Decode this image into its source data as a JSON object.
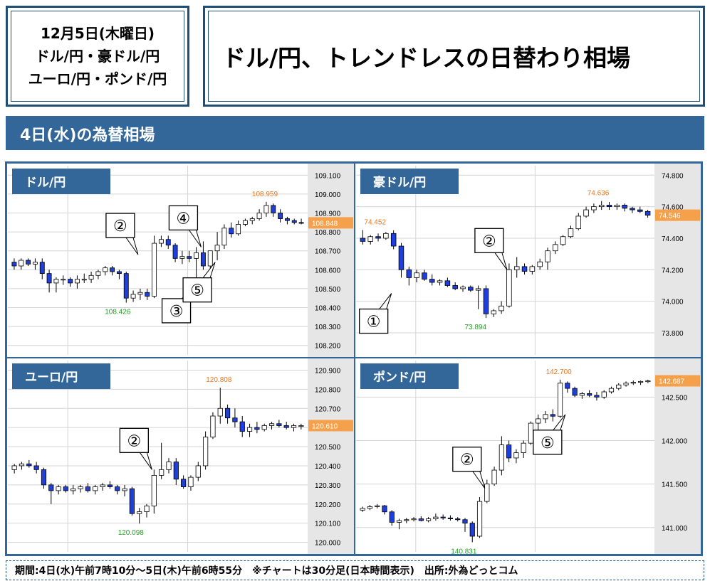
{
  "header": {
    "date_line": "12月5日(木曜日)",
    "pairs_line_1": "ドル/円・豪ドル/円",
    "pairs_line_2": "ユーロ/円・ポンド/円",
    "headline": "ドル/円、トレンドレスの日替わり相場"
  },
  "section_title": "4日(水)の為替相場",
  "footer_text": "期間:4日(水)午前7時10分～5日(木)午前6時55分　※チャートは30分足(日本時間表示)　出所:外為どっとコム",
  "colors": {
    "navy": "#1f4e79",
    "bar_blue": "#336699",
    "up_candle": "#ffffff",
    "down_candle": "#1e3ede",
    "high_label": "#e8781e",
    "low_label": "#22a022",
    "price_tag": "#f5a04a"
  },
  "chart_data": [
    {
      "type": "candlestick",
      "title": "ドル/円",
      "ylim": [
        108.15,
        109.15
      ],
      "yticks": [
        108.2,
        108.3,
        108.4,
        108.5,
        108.6,
        108.7,
        108.8,
        108.9,
        109.0,
        109.1
      ],
      "ytick_labels": [
        "108.200",
        "108.300",
        "108.400",
        "108.500",
        "108.600",
        "108.700",
        "108.800",
        "108.900",
        "109.000",
        "109.100"
      ],
      "last_price": 108.848,
      "last_price_label": "108.848",
      "high": {
        "value": 108.959,
        "label": "108.959",
        "index": 36
      },
      "low": {
        "value": 108.426,
        "label": "108.426",
        "index": 16
      },
      "annotations": [
        {
          "label": "②",
          "index": 18,
          "value": 108.68
        },
        {
          "label": "③",
          "index": 26,
          "value": 108.53
        },
        {
          "label": "④",
          "index": 27,
          "value": 108.72
        },
        {
          "label": "⑤",
          "index": 29,
          "value": 108.64
        }
      ],
      "candles": [
        [
          108.64,
          108.66,
          108.6,
          108.62
        ],
        [
          108.62,
          108.66,
          108.6,
          108.65
        ],
        [
          108.65,
          108.66,
          108.62,
          108.63
        ],
        [
          108.63,
          108.66,
          108.6,
          108.64
        ],
        [
          108.64,
          108.66,
          108.55,
          108.58
        ],
        [
          108.58,
          108.6,
          108.48,
          108.53
        ],
        [
          108.53,
          108.56,
          108.48,
          108.55
        ],
        [
          108.55,
          108.57,
          108.52,
          108.55
        ],
        [
          108.55,
          108.56,
          108.51,
          108.53
        ],
        [
          108.53,
          108.57,
          108.5,
          108.55
        ],
        [
          108.55,
          108.58,
          108.53,
          108.55
        ],
        [
          108.55,
          108.59,
          108.53,
          108.57
        ],
        [
          108.57,
          108.6,
          108.55,
          108.59
        ],
        [
          108.59,
          108.62,
          108.57,
          108.61
        ],
        [
          108.61,
          108.62,
          108.57,
          108.59
        ],
        [
          108.59,
          108.6,
          108.55,
          108.58
        ],
        [
          108.58,
          108.59,
          108.426,
          108.45
        ],
        [
          108.45,
          108.49,
          108.43,
          108.47
        ],
        [
          108.47,
          108.5,
          108.44,
          108.48
        ],
        [
          108.48,
          108.5,
          108.44,
          108.46
        ],
        [
          108.46,
          108.78,
          108.45,
          108.74
        ],
        [
          108.74,
          108.78,
          108.72,
          108.76
        ],
        [
          108.76,
          108.78,
          108.71,
          108.73
        ],
        [
          108.73,
          108.74,
          108.64,
          108.66
        ],
        [
          108.66,
          108.7,
          108.63,
          108.67
        ],
        [
          108.67,
          108.7,
          108.64,
          108.66
        ],
        [
          108.66,
          108.72,
          108.53,
          108.69
        ],
        [
          108.69,
          108.75,
          108.6,
          108.62
        ],
        [
          108.62,
          108.7,
          108.6,
          108.7
        ],
        [
          108.7,
          108.8,
          108.65,
          108.73
        ],
        [
          108.73,
          108.84,
          108.71,
          108.82
        ],
        [
          108.82,
          108.85,
          108.77,
          108.79
        ],
        [
          108.79,
          108.86,
          108.78,
          108.84
        ],
        [
          108.84,
          108.87,
          108.83,
          108.86
        ],
        [
          108.86,
          108.88,
          108.84,
          108.87
        ],
        [
          108.87,
          108.92,
          108.86,
          108.9
        ],
        [
          108.9,
          108.959,
          108.88,
          108.94
        ],
        [
          108.94,
          108.95,
          108.88,
          108.9
        ],
        [
          108.9,
          108.92,
          108.85,
          108.87
        ],
        [
          108.87,
          108.88,
          108.84,
          108.86
        ],
        [
          108.86,
          108.87,
          108.84,
          108.85
        ],
        [
          108.85,
          108.87,
          108.84,
          108.848
        ]
      ]
    },
    {
      "type": "candlestick",
      "title": "豪ドル/円",
      "ylim": [
        73.66,
        74.86
      ],
      "yticks": [
        73.8,
        74.0,
        74.2,
        74.4,
        74.6,
        74.8
      ],
      "ytick_labels": [
        "73.800",
        "74.000",
        "74.200",
        "74.400",
        "74.600",
        "74.800"
      ],
      "last_price": 74.546,
      "last_price_label": "74.546",
      "high": {
        "value": 74.636,
        "label": "74.636",
        "index": 31
      },
      "low": {
        "value": 73.894,
        "label": "73.894",
        "index": 16
      },
      "second_label": {
        "value": 74.452,
        "label": "74.452",
        "index": 0
      },
      "annotations": [
        {
          "label": "②",
          "index": 19,
          "value": 74.2
        },
        {
          "label": "①",
          "index": 4,
          "value": 74.05
        }
      ],
      "candles": [
        [
          74.4,
          74.452,
          74.36,
          74.38
        ],
        [
          74.38,
          74.42,
          74.36,
          74.41
        ],
        [
          74.41,
          74.43,
          74.38,
          74.4
        ],
        [
          74.4,
          74.44,
          74.39,
          74.43
        ],
        [
          74.43,
          74.45,
          74.33,
          74.35
        ],
        [
          74.35,
          74.37,
          74.15,
          74.2
        ],
        [
          74.2,
          74.22,
          74.1,
          74.15
        ],
        [
          74.15,
          74.2,
          74.12,
          74.18
        ],
        [
          74.18,
          74.2,
          74.13,
          74.14
        ],
        [
          74.14,
          74.17,
          74.1,
          74.12
        ],
        [
          74.12,
          74.14,
          74.1,
          74.13
        ],
        [
          74.13,
          74.15,
          74.09,
          74.1
        ],
        [
          74.1,
          74.12,
          74.07,
          74.08
        ],
        [
          74.08,
          74.1,
          74.06,
          74.09
        ],
        [
          74.09,
          74.1,
          74.06,
          74.07
        ],
        [
          74.07,
          74.1,
          73.95,
          74.08
        ],
        [
          74.08,
          74.1,
          73.894,
          73.92
        ],
        [
          73.92,
          73.95,
          73.9,
          73.94
        ],
        [
          73.94,
          74.0,
          73.92,
          73.97
        ],
        [
          73.97,
          74.24,
          73.96,
          74.2
        ],
        [
          74.2,
          74.28,
          74.15,
          74.22
        ],
        [
          74.22,
          74.24,
          74.17,
          74.19
        ],
        [
          74.19,
          74.23,
          74.17,
          74.22
        ],
        [
          74.22,
          74.27,
          74.2,
          74.25
        ],
        [
          74.25,
          74.34,
          74.2,
          74.32
        ],
        [
          74.32,
          74.38,
          74.3,
          74.36
        ],
        [
          74.36,
          74.42,
          74.35,
          74.41
        ],
        [
          74.41,
          74.48,
          74.4,
          74.46
        ],
        [
          74.46,
          74.56,
          74.45,
          74.54
        ],
        [
          74.54,
          74.6,
          74.53,
          74.58
        ],
        [
          74.58,
          74.62,
          74.56,
          74.6
        ],
        [
          74.6,
          74.636,
          74.58,
          74.61
        ],
        [
          74.61,
          74.63,
          74.58,
          74.6
        ],
        [
          74.6,
          74.62,
          74.58,
          74.61
        ],
        [
          74.61,
          74.62,
          74.57,
          74.59
        ],
        [
          74.59,
          74.6,
          74.56,
          74.58
        ],
        [
          74.58,
          74.6,
          74.56,
          74.57
        ],
        [
          74.57,
          74.58,
          74.53,
          74.546
        ]
      ]
    },
    {
      "type": "candlestick",
      "title": "ユーロ/円",
      "ylim": [
        119.95,
        120.95
      ],
      "yticks": [
        120.0,
        120.1,
        120.2,
        120.3,
        120.4,
        120.5,
        120.6,
        120.7,
        120.8,
        120.9
      ],
      "ytick_labels": [
        "120.000",
        "120.100",
        "120.200",
        "120.300",
        "120.400",
        "120.500",
        "120.600",
        "120.700",
        "120.800",
        "120.900"
      ],
      "last_price": 120.61,
      "last_price_label": "120.610",
      "high": {
        "value": 120.808,
        "label": "120.808",
        "index": 28
      },
      "low": {
        "value": 120.098,
        "label": "120.098",
        "index": 17
      },
      "annotations": [
        {
          "label": "②",
          "index": 19,
          "value": 120.38
        }
      ],
      "candles": [
        [
          120.38,
          120.41,
          120.36,
          120.4
        ],
        [
          120.4,
          120.42,
          120.38,
          120.41
        ],
        [
          120.41,
          120.43,
          120.39,
          120.4
        ],
        [
          120.4,
          120.42,
          120.36,
          120.38
        ],
        [
          120.38,
          120.39,
          120.28,
          120.3
        ],
        [
          120.3,
          120.31,
          120.2,
          120.27
        ],
        [
          120.27,
          120.3,
          120.25,
          120.29
        ],
        [
          120.29,
          120.3,
          120.26,
          120.27
        ],
        [
          120.27,
          120.3,
          120.25,
          120.28
        ],
        [
          120.28,
          120.3,
          120.26,
          120.29
        ],
        [
          120.29,
          120.31,
          120.26,
          120.27
        ],
        [
          120.27,
          120.3,
          120.25,
          120.29
        ],
        [
          120.29,
          120.31,
          120.27,
          120.3
        ],
        [
          120.3,
          120.32,
          120.28,
          120.29
        ],
        [
          120.29,
          120.3,
          120.25,
          120.27
        ],
        [
          120.27,
          120.3,
          120.24,
          120.28
        ],
        [
          120.28,
          120.29,
          120.14,
          120.15
        ],
        [
          120.15,
          120.18,
          120.098,
          120.16
        ],
        [
          120.16,
          120.2,
          120.13,
          120.19
        ],
        [
          120.19,
          120.38,
          120.15,
          120.35
        ],
        [
          120.35,
          120.52,
          120.33,
          120.38
        ],
        [
          120.38,
          120.44,
          120.36,
          120.42
        ],
        [
          120.42,
          120.44,
          120.3,
          120.33
        ],
        [
          120.33,
          120.35,
          120.28,
          120.29
        ],
        [
          120.29,
          120.35,
          120.27,
          120.34
        ],
        [
          120.34,
          120.42,
          120.32,
          120.4
        ],
        [
          120.4,
          120.58,
          120.38,
          120.55
        ],
        [
          120.55,
          120.68,
          120.54,
          120.66
        ],
        [
          120.66,
          120.808,
          120.62,
          120.7
        ],
        [
          120.7,
          120.72,
          120.62,
          120.65
        ],
        [
          120.65,
          120.7,
          120.6,
          120.63
        ],
        [
          120.63,
          120.66,
          120.55,
          120.58
        ],
        [
          120.58,
          120.62,
          120.55,
          120.6
        ],
        [
          120.6,
          120.63,
          120.57,
          120.59
        ],
        [
          120.59,
          120.62,
          120.58,
          120.61
        ],
        [
          120.61,
          120.63,
          120.59,
          120.62
        ],
        [
          120.62,
          120.64,
          120.6,
          120.61
        ],
        [
          120.61,
          120.63,
          120.59,
          120.6
        ],
        [
          120.6,
          120.62,
          120.58,
          120.61
        ],
        [
          120.61,
          120.62,
          120.59,
          120.61
        ]
      ]
    },
    {
      "type": "candlestick",
      "title": "ポンド/円",
      "ylim": [
        140.72,
        142.92
      ],
      "yticks": [
        141.0,
        141.5,
        142.0,
        142.5
      ],
      "ytick_labels": [
        "141.000",
        "141.500",
        "142.000",
        "142.500"
      ],
      "last_price": 142.687,
      "last_price_label": "142.687",
      "high": {
        "value": 142.7,
        "label": "142.700",
        "index": 27
      },
      "low": {
        "value": 140.831,
        "label": "140.831",
        "index": 15
      },
      "annotations": [
        {
          "label": "②",
          "index": 17,
          "value": 141.45
        },
        {
          "label": "⑤",
          "index": 28,
          "value": 142.3
        }
      ],
      "candles": [
        [
          141.2,
          141.24,
          141.18,
          141.22
        ],
        [
          141.22,
          141.26,
          141.2,
          141.24
        ],
        [
          141.24,
          141.27,
          141.22,
          141.25
        ],
        [
          141.25,
          141.26,
          141.15,
          141.18
        ],
        [
          141.18,
          141.2,
          141.02,
          141.06
        ],
        [
          141.06,
          141.1,
          140.98,
          141.08
        ],
        [
          141.08,
          141.11,
          141.05,
          141.09
        ],
        [
          141.09,
          141.12,
          141.07,
          141.1
        ],
        [
          141.1,
          141.13,
          141.07,
          141.08
        ],
        [
          141.08,
          141.12,
          141.06,
          141.1
        ],
        [
          141.1,
          141.16,
          141.08,
          141.12
        ],
        [
          141.12,
          141.15,
          141.09,
          141.11
        ],
        [
          141.11,
          141.14,
          141.08,
          141.1
        ],
        [
          141.1,
          141.12,
          141.07,
          141.09
        ],
        [
          141.09,
          141.11,
          140.95,
          141.05
        ],
        [
          141.05,
          141.07,
          140.831,
          140.9
        ],
        [
          140.9,
          141.35,
          140.88,
          141.3
        ],
        [
          141.3,
          141.55,
          141.28,
          141.5
        ],
        [
          141.5,
          141.7,
          141.48,
          141.66
        ],
        [
          141.66,
          142.05,
          141.6,
          141.95
        ],
        [
          141.95,
          142.0,
          141.75,
          141.8
        ],
        [
          141.8,
          141.9,
          141.74,
          141.86
        ],
        [
          141.86,
          142.0,
          141.8,
          141.97
        ],
        [
          141.97,
          142.22,
          141.95,
          142.2
        ],
        [
          142.2,
          142.3,
          142.12,
          142.25
        ],
        [
          142.25,
          142.34,
          142.2,
          142.3
        ],
        [
          142.3,
          142.36,
          142.22,
          142.28
        ],
        [
          142.28,
          142.7,
          142.26,
          142.66
        ],
        [
          142.66,
          142.68,
          142.55,
          142.6
        ],
        [
          142.6,
          142.62,
          142.5,
          142.52
        ],
        [
          142.52,
          142.56,
          142.48,
          142.54
        ],
        [
          142.54,
          142.58,
          142.5,
          142.52
        ],
        [
          142.52,
          142.56,
          142.46,
          142.5
        ],
        [
          142.5,
          142.58,
          142.48,
          142.56
        ],
        [
          142.56,
          142.62,
          142.54,
          142.6
        ],
        [
          142.6,
          142.66,
          142.58,
          142.64
        ],
        [
          142.64,
          142.68,
          142.62,
          142.66
        ],
        [
          142.66,
          142.69,
          142.64,
          142.67
        ],
        [
          142.67,
          142.69,
          142.64,
          142.68
        ],
        [
          142.68,
          142.7,
          142.66,
          142.687
        ]
      ]
    }
  ]
}
